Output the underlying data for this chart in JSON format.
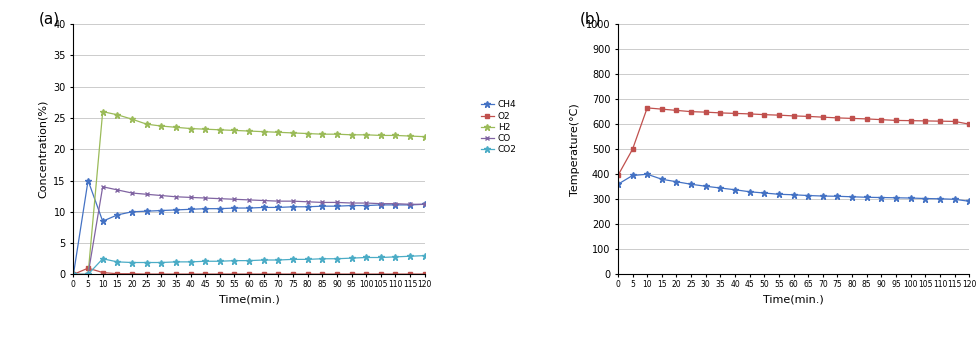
{
  "time_a": [
    0,
    5,
    10,
    15,
    20,
    25,
    30,
    35,
    40,
    45,
    50,
    55,
    60,
    65,
    70,
    75,
    80,
    85,
    90,
    95,
    100,
    105,
    110,
    115,
    120
  ],
  "CH4": [
    0,
    15,
    8.5,
    9.5,
    10.0,
    10.1,
    10.2,
    10.3,
    10.4,
    10.5,
    10.5,
    10.6,
    10.6,
    10.7,
    10.7,
    10.8,
    10.8,
    10.9,
    10.9,
    11.0,
    11.0,
    11.1,
    11.1,
    11.1,
    11.2
  ],
  "O2": [
    0,
    1.0,
    0.3,
    0.1,
    0.1,
    0.05,
    0.05,
    0.05,
    0.05,
    0.05,
    0.05,
    0.05,
    0.05,
    0.05,
    0.05,
    0.05,
    0.05,
    0.05,
    0.05,
    0.05,
    0.05,
    0.05,
    0.05,
    0.05,
    0.05
  ],
  "H2": [
    0,
    0,
    26.0,
    25.5,
    24.8,
    24.0,
    23.7,
    23.5,
    23.3,
    23.2,
    23.1,
    23.0,
    22.9,
    22.8,
    22.7,
    22.6,
    22.5,
    22.4,
    22.4,
    22.3,
    22.3,
    22.2,
    22.2,
    22.1,
    22.0
  ],
  "CO": [
    0,
    0,
    14.0,
    13.5,
    13.0,
    12.8,
    12.6,
    12.4,
    12.3,
    12.2,
    12.1,
    12.0,
    11.9,
    11.8,
    11.7,
    11.7,
    11.6,
    11.5,
    11.5,
    11.4,
    11.4,
    11.3,
    11.3,
    11.2,
    11.2
  ],
  "CO2": [
    0,
    0,
    2.5,
    2.0,
    1.9,
    1.9,
    1.9,
    2.0,
    2.0,
    2.1,
    2.1,
    2.2,
    2.2,
    2.3,
    2.3,
    2.4,
    2.4,
    2.5,
    2.5,
    2.6,
    2.7,
    2.7,
    2.8,
    2.9,
    3.0
  ],
  "time_b": [
    0,
    5,
    10,
    15,
    20,
    25,
    30,
    35,
    40,
    45,
    50,
    55,
    60,
    65,
    70,
    75,
    80,
    85,
    90,
    95,
    100,
    105,
    110,
    115,
    120
  ],
  "gas_temp": [
    360,
    395,
    400,
    380,
    370,
    360,
    352,
    345,
    338,
    330,
    325,
    320,
    318,
    315,
    313,
    312,
    310,
    308,
    307,
    306,
    305,
    303,
    302,
    300,
    292
  ],
  "catal_temp": [
    395,
    500,
    665,
    660,
    655,
    650,
    648,
    645,
    643,
    641,
    638,
    636,
    633,
    631,
    628,
    625,
    623,
    621,
    618,
    615,
    614,
    613,
    612,
    611,
    600
  ],
  "CH4_color": "#4472c4",
  "O2_color": "#c0504d",
  "H2_color": "#9bbb59",
  "CO_color": "#8064a2",
  "CO2_color": "#4bacc6",
  "gas_color": "#4472c4",
  "catal_color": "#c0504d",
  "label_a": "(a)",
  "label_b": "(b)",
  "xlabel": "Time(min.)",
  "ylabel_a": "Concentration(%)",
  "ylabel_b": "Temperature(°C)",
  "ylim_a": [
    0,
    40
  ],
  "ylim_b": [
    0,
    1000
  ],
  "yticks_a": [
    0,
    5,
    10,
    15,
    20,
    25,
    30,
    35,
    40
  ],
  "yticks_b": [
    0,
    100,
    200,
    300,
    400,
    500,
    600,
    700,
    800,
    900,
    1000
  ],
  "xtick_labels": [
    "0",
    "5",
    "10",
    "15",
    "20",
    "25",
    "30",
    "35",
    "40",
    "45",
    "50",
    "55",
    "60",
    "65",
    "70",
    "75",
    "80",
    "85",
    "90",
    "95",
    "100",
    "105",
    "110",
    "115",
    "120"
  ]
}
